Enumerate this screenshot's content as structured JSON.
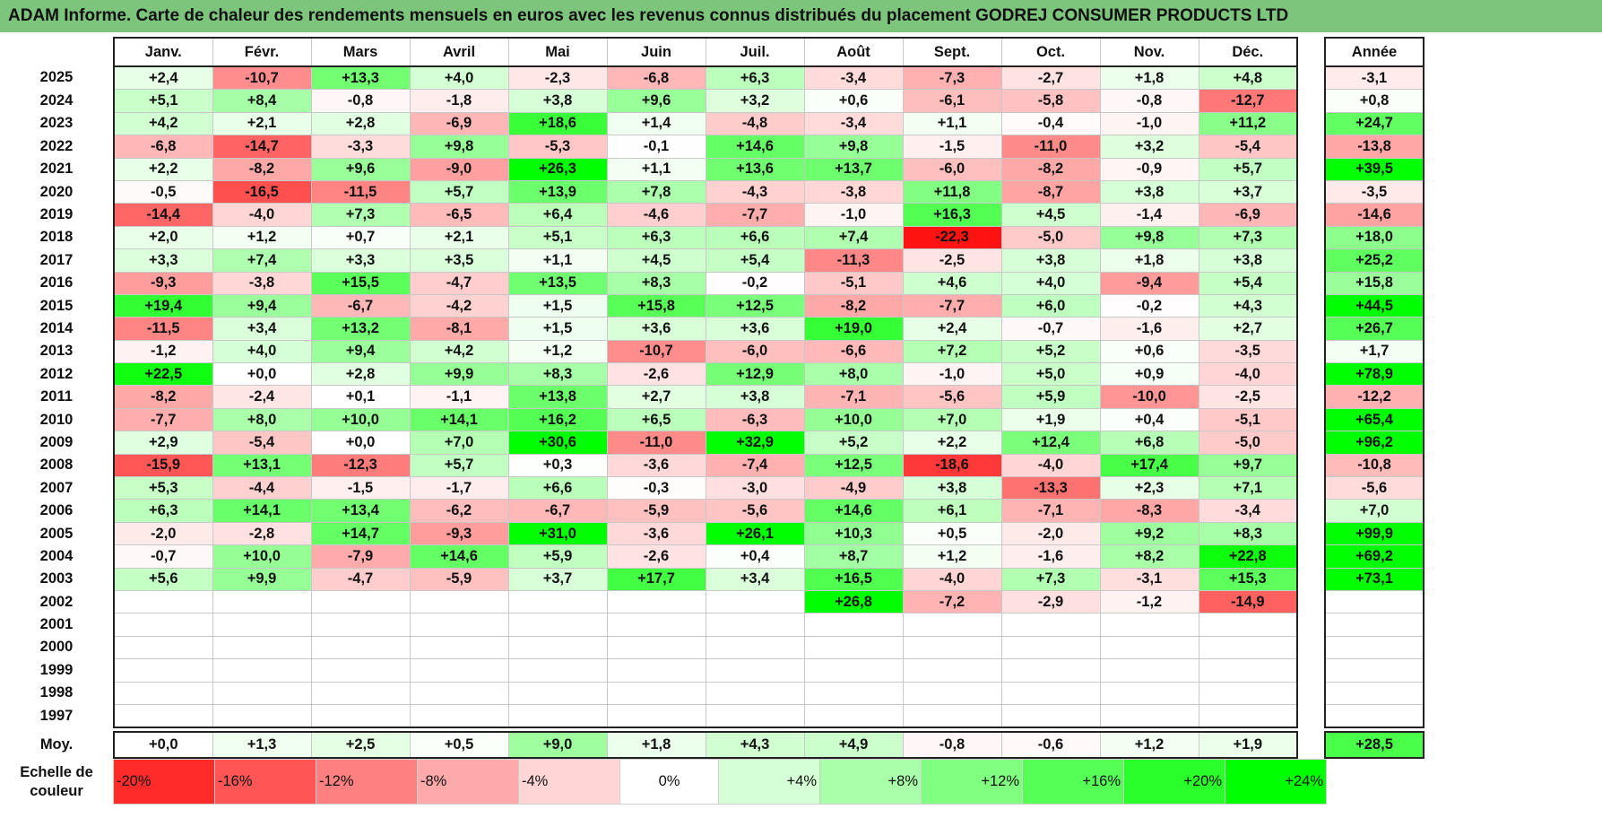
{
  "title": "ADAM Informe. Carte de chaleur des rendements mensuels en euros avec les revenus connus distribués du placement GODREJ CONSUMER PRODUCTS LTD",
  "chart_data": {
    "type": "heatmap",
    "months": [
      "Janv.",
      "Févr.",
      "Mars",
      "Avril",
      "Mai",
      "Juin",
      "Juil.",
      "Août",
      "Sept.",
      "Oct.",
      "Nov.",
      "Déc."
    ],
    "year_column_label": "Année",
    "rows": [
      {
        "year": "2025",
        "values": [
          "+2,4",
          "-10,7",
          "+13,3",
          "+4,0",
          "-2,3",
          "-6,8",
          "+6,3",
          "-3,4",
          "-7,3",
          "-2,7",
          "+1,8",
          "+4,8"
        ],
        "annual": "-3,1"
      },
      {
        "year": "2024",
        "values": [
          "+5,1",
          "+8,4",
          "-0,8",
          "-1,8",
          "+3,8",
          "+9,6",
          "+3,2",
          "+0,6",
          "-6,1",
          "-5,8",
          "-0,8",
          "-12,7"
        ],
        "annual": "+0,8"
      },
      {
        "year": "2023",
        "values": [
          "+4,2",
          "+2,1",
          "+2,8",
          "-6,9",
          "+18,6",
          "+1,4",
          "-4,8",
          "-3,4",
          "+1,1",
          "-0,4",
          "-1,0",
          "+11,2"
        ],
        "annual": "+24,7"
      },
      {
        "year": "2022",
        "values": [
          "-6,8",
          "-14,7",
          "-3,3",
          "+9,8",
          "-5,3",
          "-0,1",
          "+14,6",
          "+9,8",
          "-1,5",
          "-11,0",
          "+3,2",
          "-5,4"
        ],
        "annual": "-13,8"
      },
      {
        "year": "2021",
        "values": [
          "+2,2",
          "-8,2",
          "+9,6",
          "-9,0",
          "+26,3",
          "+1,1",
          "+13,6",
          "+13,7",
          "-6,0",
          "-8,2",
          "-0,9",
          "+5,7"
        ],
        "annual": "+39,5"
      },
      {
        "year": "2020",
        "values": [
          "-0,5",
          "-16,5",
          "-11,5",
          "+5,7",
          "+13,9",
          "+7,8",
          "-4,3",
          "-3,8",
          "+11,8",
          "-8,7",
          "+3,8",
          "+3,7"
        ],
        "annual": "-3,5"
      },
      {
        "year": "2019",
        "values": [
          "-14,4",
          "-4,0",
          "+7,3",
          "-6,5",
          "+6,4",
          "-4,6",
          "-7,7",
          "-1,0",
          "+16,3",
          "+4,5",
          "-1,4",
          "-6,9"
        ],
        "annual": "-14,6"
      },
      {
        "year": "2018",
        "values": [
          "+2,0",
          "+1,2",
          "+0,7",
          "+2,1",
          "+5,1",
          "+6,3",
          "+6,6",
          "+7,4",
          "-22,3",
          "-5,0",
          "+9,8",
          "+7,3"
        ],
        "annual": "+18,0"
      },
      {
        "year": "2017",
        "values": [
          "+3,3",
          "+7,4",
          "+3,3",
          "+3,5",
          "+1,1",
          "+4,5",
          "+5,4",
          "-11,3",
          "-2,5",
          "+3,8",
          "+1,8",
          "+3,8"
        ],
        "annual": "+25,2"
      },
      {
        "year": "2016",
        "values": [
          "-9,3",
          "-3,8",
          "+15,5",
          "-4,7",
          "+13,5",
          "+8,3",
          "-0,2",
          "-5,1",
          "+4,6",
          "+4,0",
          "-9,4",
          "+5,4"
        ],
        "annual": "+15,8"
      },
      {
        "year": "2015",
        "values": [
          "+19,4",
          "+9,4",
          "-6,7",
          "-4,2",
          "+1,5",
          "+15,8",
          "+12,5",
          "-8,2",
          "-7,7",
          "+6,0",
          "-0,2",
          "+4,3"
        ],
        "annual": "+44,5"
      },
      {
        "year": "2014",
        "values": [
          "-11,5",
          "+3,4",
          "+13,2",
          "-8,1",
          "+1,5",
          "+3,6",
          "+3,6",
          "+19,0",
          "+2,4",
          "-0,7",
          "-1,6",
          "+2,7"
        ],
        "annual": "+26,7"
      },
      {
        "year": "2013",
        "values": [
          "-1,2",
          "+4,0",
          "+9,4",
          "+4,2",
          "+1,2",
          "-10,7",
          "-6,0",
          "-6,6",
          "+7,2",
          "+5,2",
          "+0,6",
          "-3,5"
        ],
        "annual": "+1,7"
      },
      {
        "year": "2012",
        "values": [
          "+22,5",
          "+0,0",
          "+2,8",
          "+9,9",
          "+8,3",
          "-2,6",
          "+12,9",
          "+8,0",
          "-1,0",
          "+5,0",
          "+0,9",
          "-4,0"
        ],
        "annual": "+78,9"
      },
      {
        "year": "2011",
        "values": [
          "-8,2",
          "-2,4",
          "+0,1",
          "-1,1",
          "+13,8",
          "+2,7",
          "+3,8",
          "-7,1",
          "-5,6",
          "+5,9",
          "-10,0",
          "-2,5"
        ],
        "annual": "-12,2"
      },
      {
        "year": "2010",
        "values": [
          "-7,7",
          "+8,0",
          "+10,0",
          "+14,1",
          "+16,2",
          "+6,5",
          "-6,3",
          "+10,0",
          "+7,0",
          "+1,9",
          "+0,4",
          "-5,1"
        ],
        "annual": "+65,4"
      },
      {
        "year": "2009",
        "values": [
          "+2,9",
          "-5,4",
          "+0,0",
          "+7,0",
          "+30,6",
          "-11,0",
          "+32,9",
          "+5,2",
          "+2,2",
          "+12,4",
          "+6,8",
          "-5,0"
        ],
        "annual": "+96,2"
      },
      {
        "year": "2008",
        "values": [
          "-15,9",
          "+13,1",
          "-12,3",
          "+5,7",
          "+0,3",
          "-3,6",
          "-7,4",
          "+12,5",
          "-18,6",
          "-4,0",
          "+17,4",
          "+9,7"
        ],
        "annual": "-10,8"
      },
      {
        "year": "2007",
        "values": [
          "+5,3",
          "-4,4",
          "-1,5",
          "-1,7",
          "+6,6",
          "-0,3",
          "-3,0",
          "-4,9",
          "+3,8",
          "-13,3",
          "+2,3",
          "+7,1"
        ],
        "annual": "-5,6"
      },
      {
        "year": "2006",
        "values": [
          "+6,3",
          "+14,1",
          "+13,4",
          "-6,2",
          "-6,7",
          "-5,9",
          "-5,6",
          "+14,6",
          "+6,1",
          "-7,1",
          "-8,3",
          "-3,4"
        ],
        "annual": "+7,0"
      },
      {
        "year": "2005",
        "values": [
          "-2,0",
          "-2,8",
          "+14,7",
          "-9,3",
          "+31,0",
          "-3,6",
          "+26,1",
          "+10,3",
          "+0,5",
          "-2,0",
          "+9,2",
          "+8,3"
        ],
        "annual": "+99,9"
      },
      {
        "year": "2004",
        "values": [
          "-0,7",
          "+10,0",
          "-7,9",
          "+14,6",
          "+5,9",
          "-2,6",
          "+0,4",
          "+8,7",
          "+1,2",
          "-1,6",
          "+8,2",
          "+22,8"
        ],
        "annual": "+69,2"
      },
      {
        "year": "2003",
        "values": [
          "+5,6",
          "+9,9",
          "-4,7",
          "-5,9",
          "+3,7",
          "+17,7",
          "+3,4",
          "+16,5",
          "-4,0",
          "+7,3",
          "-3,1",
          "+15,3"
        ],
        "annual": "+73,1"
      },
      {
        "year": "2002",
        "values": [
          "",
          "",
          "",
          "",
          "",
          "",
          "",
          "+26,8",
          "-7,2",
          "-2,9",
          "-1,2",
          "-14,9"
        ],
        "annual": ""
      },
      {
        "year": "2001",
        "values": [
          "",
          "",
          "",
          "",
          "",
          "",
          "",
          "",
          "",
          "",
          "",
          ""
        ],
        "annual": ""
      },
      {
        "year": "2000",
        "values": [
          "",
          "",
          "",
          "",
          "",
          "",
          "",
          "",
          "",
          "",
          "",
          ""
        ],
        "annual": ""
      },
      {
        "year": "1999",
        "values": [
          "",
          "",
          "",
          "",
          "",
          "",
          "",
          "",
          "",
          "",
          "",
          ""
        ],
        "annual": ""
      },
      {
        "year": "1998",
        "values": [
          "",
          "",
          "",
          "",
          "",
          "",
          "",
          "",
          "",
          "",
          "",
          ""
        ],
        "annual": ""
      },
      {
        "year": "1997",
        "values": [
          "",
          "",
          "",
          "",
          "",
          "",
          "",
          "",
          "",
          "",
          "",
          ""
        ],
        "annual": ""
      }
    ],
    "average": {
      "label": "Moy.",
      "values": [
        "+0,0",
        "+1,3",
        "+2,5",
        "+0,5",
        "+9,0",
        "+1,8",
        "+4,3",
        "+4,9",
        "-0,8",
        "-0,6",
        "+1,2",
        "+1,9"
      ],
      "annual": "+28,5"
    },
    "scale": {
      "label": "Echelle de couleur",
      "stops": [
        "-20%",
        "-16%",
        "-12%",
        "-8%",
        "-4%",
        "0%",
        "+4%",
        "+8%",
        "+12%",
        "+16%",
        "+20%",
        "+24%"
      ],
      "stop_values": [
        -20,
        -16,
        -12,
        -8,
        -4,
        0,
        4,
        8,
        12,
        16,
        20,
        24
      ]
    },
    "colors": {
      "negative": "#ff0000",
      "neutral": "#ffffff",
      "positive": "#00ff00"
    }
  }
}
